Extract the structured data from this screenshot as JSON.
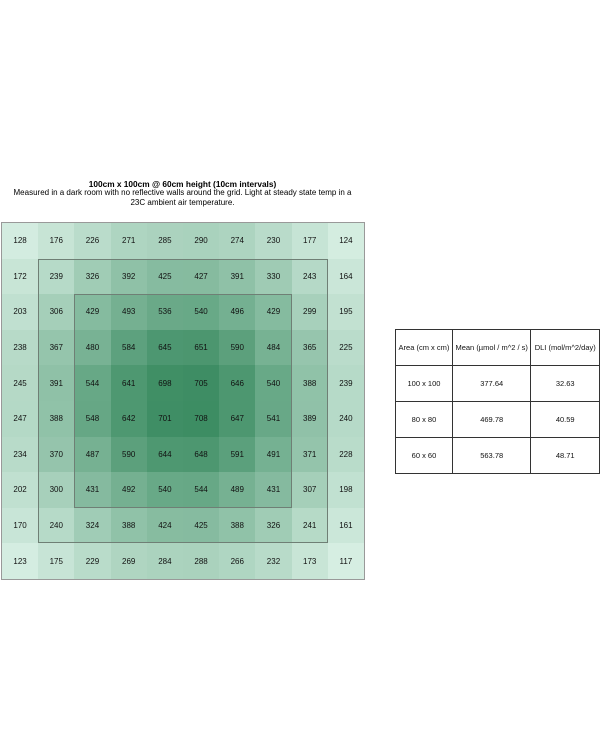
{
  "chart_data": {
    "type": "heatmap",
    "title": "100cm x 100cm @ 60cm height (10cm intervals)",
    "subtitle": "Measured in a dark room with no reflective walls around the grid. Light at steady state temp in a 23C ambient air temperature.",
    "values": [
      [
        128,
        176,
        226,
        271,
        285,
        290,
        274,
        230,
        177,
        124
      ],
      [
        172,
        239,
        326,
        392,
        425,
        427,
        391,
        330,
        243,
        164
      ],
      [
        203,
        306,
        429,
        493,
        536,
        540,
        496,
        429,
        299,
        195
      ],
      [
        238,
        367,
        480,
        584,
        645,
        651,
        590,
        484,
        365,
        225
      ],
      [
        245,
        391,
        544,
        641,
        698,
        705,
        646,
        540,
        388,
        239
      ],
      [
        247,
        388,
        548,
        642,
        701,
        708,
        647,
        541,
        389,
        240
      ],
      [
        234,
        370,
        487,
        590,
        644,
        648,
        591,
        491,
        371,
        228
      ],
      [
        202,
        300,
        431,
        492,
        540,
        544,
        489,
        431,
        307,
        198
      ],
      [
        170,
        240,
        324,
        388,
        424,
        425,
        388,
        326,
        241,
        161
      ],
      [
        123,
        175,
        229,
        269,
        284,
        288,
        266,
        232,
        173,
        117
      ]
    ],
    "color_low": "#d6eee2",
    "color_high": "#3d8d63",
    "outlined_regions": [
      "80 x 80",
      "60 x 60"
    ]
  },
  "table": {
    "headers": [
      "Area (cm x cm)",
      "Mean (µmol / m^2 / s)",
      "DLI (mol/m^2/day)"
    ],
    "rows": [
      [
        "100 x 100",
        "377.64",
        "32.63"
      ],
      [
        "80 x 80",
        "469.78",
        "40.59"
      ],
      [
        "60 x 60",
        "563.78",
        "48.71"
      ]
    ]
  }
}
